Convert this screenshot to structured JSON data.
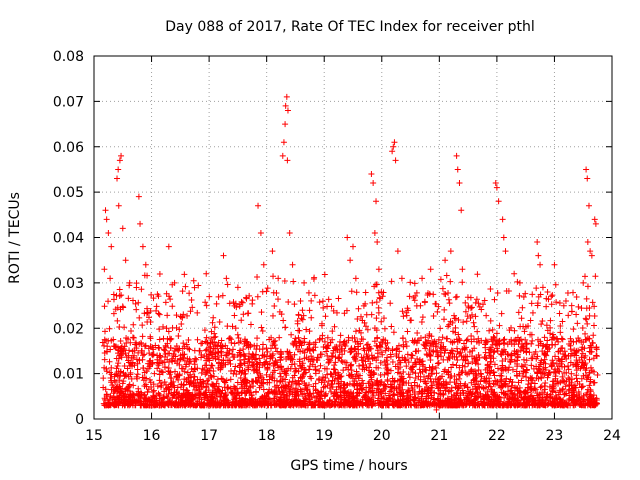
{
  "chart_data": {
    "type": "scatter",
    "title": "Day 088 of 2017, Rate Of TEC Index for receiver pthl",
    "xlabel": "GPS time / hours",
    "ylabel": "ROTI / TECUs",
    "xlim": [
      15,
      24
    ],
    "ylim": [
      0,
      0.08
    ],
    "xticks": [
      "15",
      "16",
      "17",
      "18",
      "19",
      "20",
      "21",
      "22",
      "23",
      "24"
    ],
    "yticks": [
      "0",
      "0.01",
      "0.02",
      "0.03",
      "0.04",
      "0.05",
      "0.06",
      "0.07",
      "0.08"
    ],
    "grid": true,
    "marker": "+",
    "color": "#ff0000",
    "series": [
      {
        "name": "ROTI",
        "baseline": {
          "x_start": 15.15,
          "x_end": 23.75,
          "typical_min": 0.003,
          "typical_max": 0.018
        },
        "points": [
          [
            15.2,
            0.046
          ],
          [
            15.22,
            0.044
          ],
          [
            15.25,
            0.041
          ],
          [
            15.3,
            0.038
          ],
          [
            15.18,
            0.033
          ],
          [
            15.28,
            0.031
          ],
          [
            15.4,
            0.053
          ],
          [
            15.42,
            0.055
          ],
          [
            15.45,
            0.057
          ],
          [
            15.47,
            0.058
          ],
          [
            15.43,
            0.047
          ],
          [
            15.5,
            0.042
          ],
          [
            15.55,
            0.035
          ],
          [
            15.62,
            0.03
          ],
          [
            15.78,
            0.049
          ],
          [
            15.8,
            0.043
          ],
          [
            15.85,
            0.038
          ],
          [
            15.9,
            0.034
          ],
          [
            16.3,
            0.038
          ],
          [
            16.4,
            0.03
          ],
          [
            16.95,
            0.032
          ],
          [
            17.25,
            0.036
          ],
          [
            17.3,
            0.031
          ],
          [
            17.5,
            0.029
          ],
          [
            17.85,
            0.047
          ],
          [
            17.9,
            0.041
          ],
          [
            17.95,
            0.034
          ],
          [
            18.1,
            0.037
          ],
          [
            18.2,
            0.031
          ],
          [
            18.28,
            0.058
          ],
          [
            18.3,
            0.061
          ],
          [
            18.32,
            0.065
          ],
          [
            18.33,
            0.069
          ],
          [
            18.35,
            0.071
          ],
          [
            18.37,
            0.068
          ],
          [
            18.36,
            0.057
          ],
          [
            18.4,
            0.041
          ],
          [
            18.45,
            0.034
          ],
          [
            18.65,
            0.03
          ],
          [
            19.4,
            0.04
          ],
          [
            19.45,
            0.035
          ],
          [
            19.5,
            0.038
          ],
          [
            19.55,
            0.031
          ],
          [
            19.82,
            0.054
          ],
          [
            19.85,
            0.052
          ],
          [
            19.9,
            0.048
          ],
          [
            19.88,
            0.041
          ],
          [
            19.92,
            0.039
          ],
          [
            19.95,
            0.033
          ],
          [
            20.18,
            0.059
          ],
          [
            20.2,
            0.06
          ],
          [
            20.22,
            0.061
          ],
          [
            20.24,
            0.057
          ],
          [
            20.28,
            0.037
          ],
          [
            20.35,
            0.031
          ],
          [
            20.7,
            0.031
          ],
          [
            20.85,
            0.033
          ],
          [
            21.1,
            0.035
          ],
          [
            21.2,
            0.037
          ],
          [
            21.3,
            0.058
          ],
          [
            21.32,
            0.055
          ],
          [
            21.35,
            0.052
          ],
          [
            21.38,
            0.046
          ],
          [
            21.4,
            0.033
          ],
          [
            21.98,
            0.052
          ],
          [
            22.0,
            0.051
          ],
          [
            22.03,
            0.048
          ],
          [
            22.1,
            0.044
          ],
          [
            22.12,
            0.04
          ],
          [
            22.15,
            0.037
          ],
          [
            22.3,
            0.032
          ],
          [
            22.4,
            0.03
          ],
          [
            22.7,
            0.039
          ],
          [
            22.72,
            0.036
          ],
          [
            22.75,
            0.034
          ],
          [
            22.8,
            0.029
          ],
          [
            23.0,
            0.034
          ],
          [
            23.2,
            0.026
          ],
          [
            23.3,
            0.025
          ],
          [
            23.55,
            0.055
          ],
          [
            23.57,
            0.053
          ],
          [
            23.6,
            0.047
          ],
          [
            23.58,
            0.039
          ],
          [
            23.62,
            0.037
          ],
          [
            23.7,
            0.044
          ],
          [
            23.72,
            0.043
          ],
          [
            23.65,
            0.036
          ],
          [
            23.5,
            0.03
          ],
          [
            20.95,
            0.002
          ],
          [
            21.02,
            0.003
          ]
        ]
      }
    ]
  }
}
